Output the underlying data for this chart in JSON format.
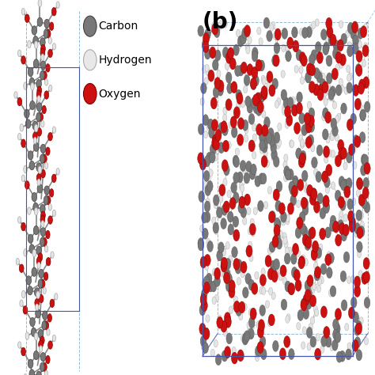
{
  "title_b": "(b)",
  "title_b_fontsize": 20,
  "title_b_fontweight": "bold",
  "legend_items": [
    {
      "label": "Carbon",
      "color": "#787878",
      "edge": "#444444"
    },
    {
      "label": "Hydrogen",
      "color": "#e8e8e8",
      "edge": "#aaaaaa"
    },
    {
      "label": "Oxygen",
      "color": "#cc1111",
      "edge": "#880000"
    }
  ],
  "bg_color": "#ffffff",
  "carbon_color": "#787878",
  "hydrogen_color": "#e4e4e4",
  "oxygen_color": "#cc1111",
  "bond_color": "#888888",
  "box_color_solid": "#4455aa",
  "box_color_dash": "#77aacc",
  "seed": 12345
}
